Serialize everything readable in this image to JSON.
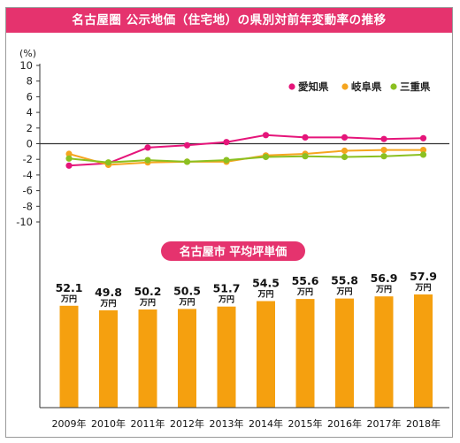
{
  "title": "名古屋圏 公示地価（住宅地）の県別対前年変動率の推移",
  "colors": {
    "title_bg": "#e5336e",
    "aichi": "#e5157a",
    "gifu": "#f5a51f",
    "mie": "#8bc021",
    "bar": "#f5a00f",
    "badge": "#e5336e"
  },
  "chart_data": [
    {
      "type": "line",
      "title": "名古屋圏 公示地価（住宅地）の県別対前年変動率の推移",
      "ylabel": "(%)",
      "ylim": [
        -10,
        10
      ],
      "yticks": [
        10,
        8,
        6,
        4,
        2,
        0,
        -2,
        -4,
        -6,
        -8,
        -10
      ],
      "x": [
        "2009年",
        "2010年",
        "2011年",
        "2012年",
        "2013年",
        "2014年",
        "2015年",
        "2016年",
        "2017年",
        "2018年"
      ],
      "legend_position": "top-right",
      "series": [
        {
          "name": "愛知県",
          "color": "#e5157a",
          "values": [
            -2.8,
            -2.5,
            -0.5,
            -0.2,
            0.2,
            1.1,
            0.8,
            0.8,
            0.6,
            0.7
          ]
        },
        {
          "name": "岐阜県",
          "color": "#f5a51f",
          "values": [
            -1.3,
            -2.7,
            -2.4,
            -2.3,
            -2.3,
            -1.5,
            -1.3,
            -0.9,
            -0.8,
            -0.8
          ]
        },
        {
          "name": "三重県",
          "color": "#8bc021",
          "values": [
            -1.9,
            -2.4,
            -2.1,
            -2.3,
            -2.1,
            -1.7,
            -1.6,
            -1.7,
            -1.6,
            -1.4
          ]
        }
      ]
    },
    {
      "type": "bar",
      "title": "名古屋市 平均坪単価",
      "categories": [
        "2009年",
        "2010年",
        "2011年",
        "2012年",
        "2013年",
        "2014年",
        "2015年",
        "2016年",
        "2017年",
        "2018年"
      ],
      "values": [
        52.1,
        49.8,
        50.2,
        50.5,
        51.7,
        54.5,
        55.6,
        55.8,
        56.9,
        57.9
      ],
      "value_labels": [
        "52.1",
        "49.8",
        "50.2",
        "50.5",
        "51.7",
        "54.5",
        "55.6",
        "55.8",
        "56.9",
        "57.9"
      ],
      "unit": "万円"
    }
  ]
}
